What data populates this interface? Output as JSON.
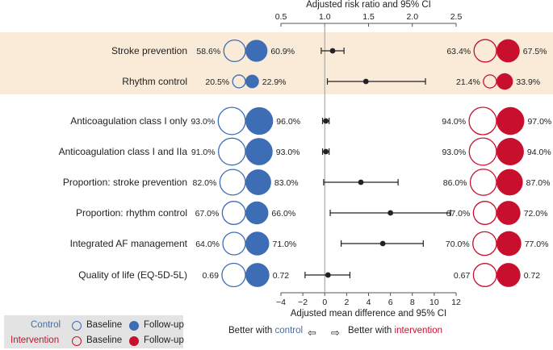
{
  "chart_data": {
    "type": "forest-with-bubbles",
    "top_axis": {
      "label": "Adjusted risk ratio and 95% CI",
      "range": [
        0.5,
        2.5
      ],
      "ticks": [
        0.5,
        1.0,
        1.5,
        2.0,
        2.5
      ],
      "tick_labels": [
        "0.5",
        "1.0",
        "1.5",
        "2.0",
        "2.5"
      ]
    },
    "bottom_axis": {
      "label": "Adjusted mean difference and 95% CI",
      "range": [
        -4,
        12
      ],
      "ticks": [
        -4,
        -2,
        0,
        2,
        4,
        6,
        8,
        10,
        12
      ],
      "tick_labels": [
        "−4",
        "−2",
        "0",
        "2",
        "4",
        "6",
        "8",
        "10",
        "12"
      ]
    },
    "reference_line": "null effect (RR = 1.0 / difference = 0)",
    "rows": [
      {
        "label": "Stroke prevention",
        "axis": "top",
        "highlighted": true,
        "control_baseline": "58.6%",
        "control_followup": "60.9%",
        "intervention_baseline": "63.4%",
        "intervention_followup": "67.5%",
        "cb": 58.6,
        "cf": 60.9,
        "ib": 63.4,
        "if": 67.5,
        "estimate": 1.09,
        "ci": [
          0.96,
          1.22
        ]
      },
      {
        "label": "Rhythm control",
        "axis": "top",
        "highlighted": true,
        "control_baseline": "20.5%",
        "control_followup": "22.9%",
        "intervention_baseline": "21.4%",
        "intervention_followup": "33.9%",
        "cb": 20.5,
        "cf": 22.9,
        "ib": 21.4,
        "if": 33.9,
        "estimate": 1.47,
        "ci": [
          1.03,
          2.15
        ]
      },
      {
        "label": "Anticoagulation class I only",
        "axis": "bottom",
        "highlighted": false,
        "control_baseline": "93.0%",
        "control_followup": "96.0%",
        "intervention_baseline": "94.0%",
        "intervention_followup": "97.0%",
        "cb": 93.0,
        "cf": 96.0,
        "ib": 94.0,
        "if": 97.0,
        "estimate": 0.1,
        "ci": [
          -0.2,
          0.4
        ]
      },
      {
        "label": "Anticoagulation class I and IIa",
        "axis": "bottom",
        "highlighted": false,
        "control_baseline": "91.0%",
        "control_followup": "93.0%",
        "intervention_baseline": "93.0%",
        "intervention_followup": "94.0%",
        "cb": 91.0,
        "cf": 93.0,
        "ib": 93.0,
        "if": 94.0,
        "estimate": 0.1,
        "ci": [
          -0.2,
          0.4
        ]
      },
      {
        "label": "Proportion: stroke prevention",
        "axis": "bottom",
        "highlighted": false,
        "control_baseline": "82.0%",
        "control_followup": "83.0%",
        "intervention_baseline": "86.0%",
        "intervention_followup": "87.0%",
        "cb": 82.0,
        "cf": 83.0,
        "ib": 86.0,
        "if": 87.0,
        "estimate": 3.3,
        "ci": [
          -0.1,
          6.7
        ]
      },
      {
        "label": "Proportion: rhythm control",
        "axis": "bottom",
        "highlighted": false,
        "control_baseline": "67.0%",
        "control_followup": "66.0%",
        "intervention_baseline": "67.0%",
        "intervention_followup": "72.0%",
        "cb": 67.0,
        "cf": 66.0,
        "ib": 67.0,
        "if": 72.0,
        "estimate": 6.0,
        "ci": [
          0.5,
          11.5
        ]
      },
      {
        "label": "Integrated AF management",
        "axis": "bottom",
        "highlighted": false,
        "control_baseline": "64.0%",
        "control_followup": "71.0%",
        "intervention_baseline": "70.0%",
        "intervention_followup": "77.0%",
        "cb": 64.0,
        "cf": 71.0,
        "ib": 70.0,
        "if": 77.0,
        "estimate": 5.3,
        "ci": [
          1.5,
          9.0
        ]
      },
      {
        "label": "Quality of life (EQ-5D-5L)",
        "axis": "bottom",
        "highlighted": false,
        "control_baseline": "0.69",
        "control_followup": "0.72",
        "intervention_baseline": "0.67",
        "intervention_followup": "0.72",
        "cb": 69.0,
        "cf": 72.0,
        "ib": 67.0,
        "if": 72.0,
        "estimate": 0.3,
        "ci": [
          -1.8,
          2.3
        ]
      }
    ]
  },
  "legend": {
    "control_label": "Control",
    "intervention_label": "Intervention",
    "baseline_label": "Baseline",
    "followup_label": "Follow-up"
  },
  "footer": {
    "better_prefix": "Better with",
    "control_word": "control",
    "intervention_word": "intervention",
    "arrow_left": "⇦",
    "arrow_right": "⇨"
  },
  "colors": {
    "control": "#3d6db5",
    "intervention": "#c8102e",
    "highlight": "#f9ebd8",
    "ci": "#222222"
  }
}
